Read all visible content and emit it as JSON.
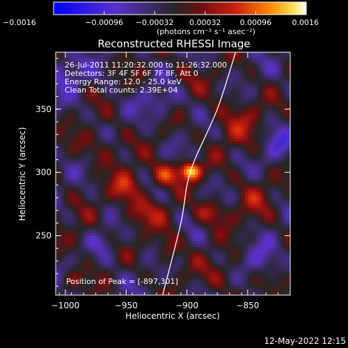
{
  "chart_data": {
    "type": "heatmap",
    "title": "Reconstructed RHESSI Image",
    "xlabel": "Heliocentric X (arcsec)",
    "ylabel": "Heliocentric Y (arcsec)",
    "xlim": [
      -1008,
      -815
    ],
    "ylim": [
      203,
      395
    ],
    "xticks": [
      -1000,
      -950,
      -900,
      -850
    ],
    "yticks": [
      250,
      300,
      350
    ],
    "xtick_labels": [
      "−1000",
      "−950",
      "−900",
      "−850"
    ],
    "ytick_labels": [
      "250",
      "300",
      "350"
    ],
    "colorbar": {
      "ticks": [
        -0.0016,
        -0.00096,
        -0.00032,
        0.00032,
        0.00096,
        0.0016
      ],
      "tick_labels": [
        "−0.0016",
        "−0.00096",
        "−0.00032",
        "0.00032",
        "0.00096",
        "0.0016"
      ],
      "units_text": "(photons cm⁻² s⁻¹ asec⁻²)",
      "range": [
        -0.0016,
        0.0016
      ]
    },
    "annotations": [
      "26-Jul-2011 11:20:32.000 to 11:26:32.000",
      "Detectors: 3F 4F 5F 6F 7F 8F, Att 0",
      "Energy Range: 12.0 - 25.0 keV",
      "Clean    Total counts: 2.39E+04"
    ],
    "peak_label": "Position of Peak = [-897,301]",
    "peak": {
      "x": -897,
      "y": 301,
      "value": 0.0016
    },
    "limb": [
      [
        -920,
        203
      ],
      [
        -905,
        260
      ],
      [
        -897,
        301
      ],
      [
        -875,
        350
      ],
      [
        -860,
        395
      ]
    ],
    "sources": [
      {
        "x": -897,
        "y": 301,
        "sx": 6,
        "sy": 5,
        "amp": 0.0016
      },
      {
        "x": -918,
        "y": 298,
        "sx": 10,
        "sy": 7,
        "amp": 0.0009
      },
      {
        "x": -950,
        "y": 287,
        "sx": 9,
        "sy": 9,
        "amp": 0.0008
      },
      {
        "x": -935,
        "y": 268,
        "sx": 12,
        "sy": 8,
        "amp": 0.0006
      },
      {
        "x": -880,
        "y": 268,
        "sx": 10,
        "sy": 7,
        "amp": 0.0007
      },
      {
        "x": -915,
        "y": 240,
        "sx": 8,
        "sy": 10,
        "amp": 0.0005
      },
      {
        "x": -970,
        "y": 320,
        "sx": 14,
        "sy": 10,
        "amp": 0.0004
      },
      {
        "x": -860,
        "y": 340,
        "sx": 15,
        "sy": 15,
        "amp": 0.0005
      },
      {
        "x": -845,
        "y": 280,
        "sx": 12,
        "sy": 14,
        "amp": 0.0004
      },
      {
        "x": -870,
        "y": 220,
        "sx": 14,
        "sy": 10,
        "amp": 0.0004
      },
      {
        "x": -985,
        "y": 250,
        "sx": 10,
        "sy": 12,
        "amp": 0.0003
      },
      {
        "x": -995,
        "y": 215,
        "sx": 7,
        "sy": 6,
        "amp": 0.0005
      },
      {
        "x": -900,
        "y": 375,
        "sx": 10,
        "sy": 8,
        "amp": 0.0003
      },
      {
        "x": -1000,
        "y": 380,
        "sx": 10,
        "sy": 10,
        "amp": -0.0006
      },
      {
        "x": -970,
        "y": 245,
        "sx": 8,
        "sy": 8,
        "amp": -0.0004
      },
      {
        "x": -840,
        "y": 230,
        "sx": 10,
        "sy": 9,
        "amp": -0.0005
      },
      {
        "x": -920,
        "y": 355,
        "sx": 12,
        "sy": 8,
        "amp": -0.0004
      },
      {
        "x": -825,
        "y": 320,
        "sx": 8,
        "sy": 10,
        "amp": -0.0005
      }
    ]
  },
  "footer": {
    "timestamp": "12-May-2022 12:15"
  }
}
